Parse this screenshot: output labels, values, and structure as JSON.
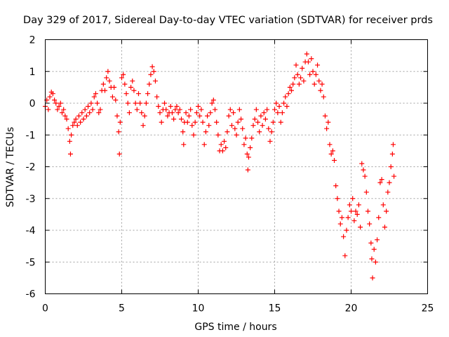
{
  "chart_data": {
    "type": "scatter",
    "title": "Day 329 of 2017, Sidereal Day-to-day VTEC variation (SDTVAR) for receiver prds",
    "xlabel": "GPS time / hours",
    "ylabel": "SDTVAR / TECUs",
    "xlim": [
      0,
      25
    ],
    "ylim": [
      -6,
      2
    ],
    "xticks": [
      "0",
      "5",
      "10",
      "15",
      "20",
      "25"
    ],
    "yticks": [
      "2",
      "1",
      "0",
      "-1",
      "-2",
      "-3",
      "-4",
      "-5",
      "-6"
    ],
    "grid": true,
    "marker": "plus",
    "color": "#ff0000",
    "series": [
      {
        "name": "SDTVAR",
        "points": [
          [
            0.0,
            -0.1
          ],
          [
            0.1,
            0.1
          ],
          [
            0.2,
            -0.2
          ],
          [
            0.3,
            0.2
          ],
          [
            0.4,
            0.35
          ],
          [
            0.5,
            0.3
          ],
          [
            0.6,
            0.1
          ],
          [
            0.7,
            0.0
          ],
          [
            0.8,
            -0.2
          ],
          [
            0.9,
            -0.1
          ],
          [
            1.0,
            0.0
          ],
          [
            1.1,
            -0.3
          ],
          [
            1.2,
            -0.2
          ],
          [
            1.3,
            -0.4
          ],
          [
            1.4,
            -0.5
          ],
          [
            1.5,
            -0.8
          ],
          [
            1.6,
            -1.2
          ],
          [
            1.65,
            -1.6
          ],
          [
            1.7,
            -1.0
          ],
          [
            1.8,
            -0.7
          ],
          [
            1.9,
            -0.6
          ],
          [
            2.0,
            -0.5
          ],
          [
            2.1,
            -0.7
          ],
          [
            2.2,
            -0.4
          ],
          [
            2.3,
            -0.6
          ],
          [
            2.4,
            -0.3
          ],
          [
            2.5,
            -0.5
          ],
          [
            2.6,
            -0.2
          ],
          [
            2.7,
            -0.4
          ],
          [
            2.8,
            -0.1
          ],
          [
            2.9,
            -0.3
          ],
          [
            3.0,
            0.0
          ],
          [
            3.1,
            -0.2
          ],
          [
            3.2,
            0.2
          ],
          [
            3.3,
            0.3
          ],
          [
            3.4,
            0.0
          ],
          [
            3.5,
            -0.3
          ],
          [
            3.6,
            -0.2
          ],
          [
            3.7,
            0.4
          ],
          [
            3.8,
            0.6
          ],
          [
            3.9,
            0.4
          ],
          [
            4.0,
            0.8
          ],
          [
            4.1,
            1.0
          ],
          [
            4.2,
            0.7
          ],
          [
            4.3,
            0.5
          ],
          [
            4.4,
            0.2
          ],
          [
            4.5,
            0.5
          ],
          [
            4.6,
            0.1
          ],
          [
            4.7,
            -0.4
          ],
          [
            4.8,
            -0.9
          ],
          [
            4.85,
            -1.6
          ],
          [
            4.9,
            -0.6
          ],
          [
            5.0,
            0.8
          ],
          [
            5.1,
            0.9
          ],
          [
            5.2,
            0.6
          ],
          [
            5.3,
            0.3
          ],
          [
            5.4,
            0.0
          ],
          [
            5.5,
            -0.3
          ],
          [
            5.6,
            0.5
          ],
          [
            5.7,
            0.7
          ],
          [
            5.8,
            0.4
          ],
          [
            5.9,
            0.0
          ],
          [
            6.0,
            -0.2
          ],
          [
            6.1,
            0.3
          ],
          [
            6.2,
            0.0
          ],
          [
            6.3,
            -0.3
          ],
          [
            6.4,
            -0.7
          ],
          [
            6.5,
            -0.4
          ],
          [
            6.6,
            0.0
          ],
          [
            6.7,
            0.3
          ],
          [
            6.8,
            0.6
          ],
          [
            6.9,
            0.9
          ],
          [
            7.0,
            1.15
          ],
          [
            7.1,
            1.0
          ],
          [
            7.2,
            0.7
          ],
          [
            7.3,
            0.2
          ],
          [
            7.4,
            -0.1
          ],
          [
            7.5,
            -0.3
          ],
          [
            7.6,
            -0.6
          ],
          [
            7.7,
            -0.2
          ],
          [
            7.8,
            0.0
          ],
          [
            7.9,
            -0.2
          ],
          [
            8.0,
            -0.4
          ],
          [
            8.1,
            -0.3
          ],
          [
            8.2,
            -0.1
          ],
          [
            8.3,
            -0.3
          ],
          [
            8.4,
            -0.5
          ],
          [
            8.5,
            -0.2
          ],
          [
            8.6,
            -0.1
          ],
          [
            8.7,
            -0.3
          ],
          [
            8.8,
            -0.2
          ],
          [
            8.9,
            -0.5
          ],
          [
            9.0,
            -0.9
          ],
          [
            9.05,
            -1.3
          ],
          [
            9.1,
            -0.6
          ],
          [
            9.2,
            -0.3
          ],
          [
            9.3,
            -0.6
          ],
          [
            9.4,
            -0.4
          ],
          [
            9.5,
            -0.2
          ],
          [
            9.6,
            -0.7
          ],
          [
            9.7,
            -1.0
          ],
          [
            9.8,
            -0.6
          ],
          [
            9.9,
            -0.3
          ],
          [
            10.0,
            -0.1
          ],
          [
            10.1,
            -0.4
          ],
          [
            10.2,
            -0.2
          ],
          [
            10.3,
            -0.6
          ],
          [
            10.4,
            -1.3
          ],
          [
            10.5,
            -0.9
          ],
          [
            10.6,
            -0.4
          ],
          [
            10.7,
            -0.7
          ],
          [
            10.8,
            -0.3
          ],
          [
            10.9,
            0.0
          ],
          [
            11.0,
            0.1
          ],
          [
            11.1,
            -0.2
          ],
          [
            11.2,
            -0.6
          ],
          [
            11.3,
            -1.0
          ],
          [
            11.4,
            -1.5
          ],
          [
            11.5,
            -1.3
          ],
          [
            11.6,
            -1.5
          ],
          [
            11.7,
            -1.2
          ],
          [
            11.8,
            -1.4
          ],
          [
            11.9,
            -0.9
          ],
          [
            12.0,
            -0.4
          ],
          [
            12.1,
            -0.2
          ],
          [
            12.2,
            -0.7
          ],
          [
            12.3,
            -0.3
          ],
          [
            12.4,
            -0.8
          ],
          [
            12.5,
            -1.0
          ],
          [
            12.6,
            -0.6
          ],
          [
            12.7,
            -0.2
          ],
          [
            12.8,
            -0.5
          ],
          [
            12.9,
            -0.8
          ],
          [
            13.0,
            -1.3
          ],
          [
            13.1,
            -1.1
          ],
          [
            13.2,
            -1.6
          ],
          [
            13.25,
            -2.1
          ],
          [
            13.3,
            -1.7
          ],
          [
            13.4,
            -1.4
          ],
          [
            13.5,
            -1.1
          ],
          [
            13.6,
            -0.7
          ],
          [
            13.7,
            -0.5
          ],
          [
            13.8,
            -0.2
          ],
          [
            13.9,
            -0.6
          ],
          [
            14.0,
            -0.9
          ],
          [
            14.1,
            -0.4
          ],
          [
            14.2,
            -0.7
          ],
          [
            14.3,
            -0.3
          ],
          [
            14.4,
            -0.5
          ],
          [
            14.5,
            -0.2
          ],
          [
            14.6,
            -0.8
          ],
          [
            14.7,
            -1.2
          ],
          [
            14.8,
            -0.9
          ],
          [
            14.9,
            -0.6
          ],
          [
            15.0,
            -0.2
          ],
          [
            15.1,
            0.0
          ],
          [
            15.2,
            -0.3
          ],
          [
            15.3,
            -0.1
          ],
          [
            15.4,
            -0.6
          ],
          [
            15.5,
            -0.3
          ],
          [
            15.6,
            0.0
          ],
          [
            15.7,
            0.2
          ],
          [
            15.8,
            -0.1
          ],
          [
            15.9,
            0.3
          ],
          [
            16.0,
            0.5
          ],
          [
            16.1,
            0.4
          ],
          [
            16.2,
            0.6
          ],
          [
            16.3,
            0.8
          ],
          [
            16.4,
            1.2
          ],
          [
            16.5,
            0.9
          ],
          [
            16.6,
            0.6
          ],
          [
            16.7,
            0.8
          ],
          [
            16.8,
            1.1
          ],
          [
            16.9,
            0.7
          ],
          [
            17.0,
            1.3
          ],
          [
            17.1,
            1.55
          ],
          [
            17.2,
            1.3
          ],
          [
            17.3,
            0.9
          ],
          [
            17.4,
            1.4
          ],
          [
            17.5,
            1.0
          ],
          [
            17.6,
            0.6
          ],
          [
            17.7,
            0.9
          ],
          [
            17.8,
            1.2
          ],
          [
            17.9,
            0.7
          ],
          [
            18.0,
            0.4
          ],
          [
            18.1,
            0.6
          ],
          [
            18.2,
            0.2
          ],
          [
            18.3,
            -0.4
          ],
          [
            18.4,
            -0.8
          ],
          [
            18.5,
            -0.6
          ],
          [
            18.6,
            -1.3
          ],
          [
            18.7,
            -1.6
          ],
          [
            18.8,
            -1.5
          ],
          [
            18.9,
            -1.8
          ],
          [
            19.0,
            -2.6
          ],
          [
            19.1,
            -3.0
          ],
          [
            19.2,
            -3.4
          ],
          [
            19.3,
            -3.8
          ],
          [
            19.4,
            -3.6
          ],
          [
            19.5,
            -4.2
          ],
          [
            19.6,
            -4.8
          ],
          [
            19.7,
            -4.0
          ],
          [
            19.8,
            -3.6
          ],
          [
            19.9,
            -3.2
          ],
          [
            20.0,
            -3.4
          ],
          [
            20.1,
            -3.0
          ],
          [
            20.2,
            -3.7
          ],
          [
            20.3,
            -3.4
          ],
          [
            20.4,
            -3.5
          ],
          [
            20.5,
            -3.2
          ],
          [
            20.6,
            -3.9
          ],
          [
            20.7,
            -1.9
          ],
          [
            20.8,
            -2.1
          ],
          [
            20.9,
            -2.3
          ],
          [
            21.0,
            -2.8
          ],
          [
            21.1,
            -3.4
          ],
          [
            21.2,
            -3.8
          ],
          [
            21.3,
            -4.4
          ],
          [
            21.35,
            -4.9
          ],
          [
            21.4,
            -5.5
          ],
          [
            21.5,
            -4.6
          ],
          [
            21.6,
            -5.0
          ],
          [
            21.7,
            -4.3
          ],
          [
            21.8,
            -3.6
          ],
          [
            21.9,
            -2.5
          ],
          [
            22.0,
            -2.4
          ],
          [
            22.1,
            -3.2
          ],
          [
            22.2,
            -3.9
          ],
          [
            22.3,
            -3.4
          ],
          [
            22.4,
            -2.8
          ],
          [
            22.5,
            -2.5
          ],
          [
            22.6,
            -2.0
          ],
          [
            22.7,
            -1.6
          ],
          [
            22.75,
            -1.3
          ],
          [
            22.8,
            -2.3
          ]
        ]
      }
    ]
  }
}
